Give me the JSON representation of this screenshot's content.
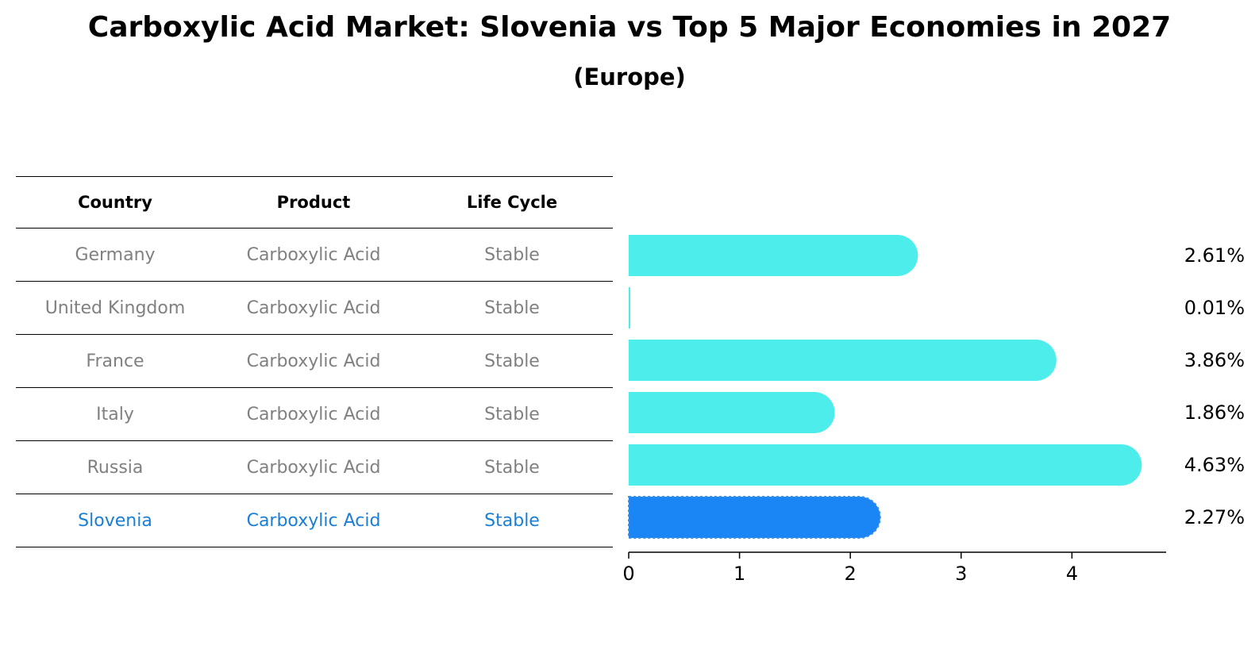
{
  "title": "Carboxylic Acid Market: Slovenia vs Top 5 Major Economies in 2027",
  "subtitle": "(Europe)",
  "table": {
    "headers": [
      "Country",
      "Product",
      "Life Cycle"
    ],
    "rows": [
      [
        "Germany",
        "Carboxylic Acid",
        "Stable"
      ],
      [
        "United Kingdom",
        "Carboxylic Acid",
        "Stable"
      ],
      [
        "France",
        "Carboxylic Acid",
        "Stable"
      ],
      [
        "Italy",
        "Carboxylic Acid",
        "Stable"
      ],
      [
        "Russia",
        "Carboxylic Acid",
        "Stable"
      ],
      [
        "Slovenia",
        "Carboxylic Acid",
        "Stable"
      ]
    ],
    "highlight_index": 5
  },
  "colors": {
    "bar": "#4dedeb",
    "highlight_bar": "#1a85f5",
    "table_text": "#808080",
    "highlight_text": "#1a7fd4"
  },
  "chart_data": {
    "type": "bar",
    "orientation": "horizontal",
    "categories": [
      "Germany",
      "United Kingdom",
      "France",
      "Italy",
      "Russia",
      "Slovenia"
    ],
    "values": [
      2.61,
      0.01,
      3.86,
      1.86,
      4.63,
      2.27
    ],
    "value_labels": [
      "2.61%",
      "0.01%",
      "3.86%",
      "1.86%",
      "4.63%",
      "2.27%"
    ],
    "xlim": [
      0,
      4.85
    ],
    "xticks": [
      0,
      1,
      2,
      3,
      4
    ],
    "highlight": "Slovenia"
  }
}
